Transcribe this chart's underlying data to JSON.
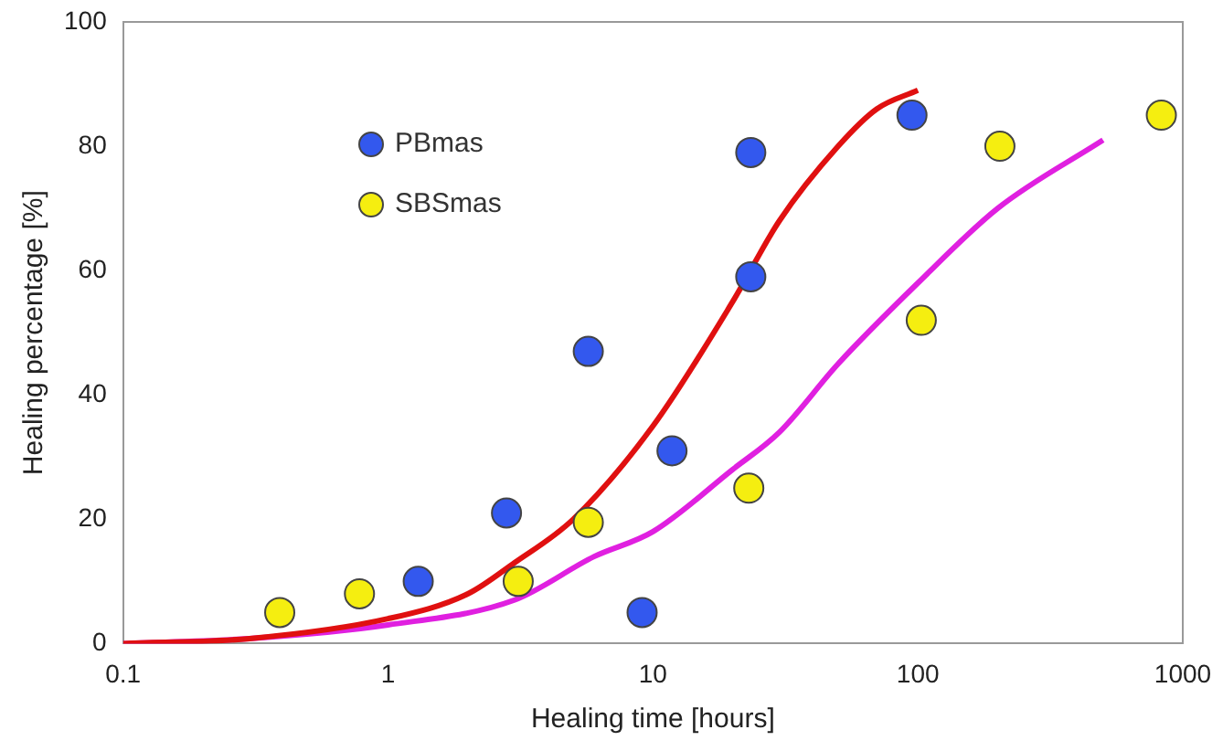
{
  "chart_data": {
    "type": "scatter",
    "xlabel": "Healing time [hours]",
    "ylabel": "Healing percentage [%]",
    "log": "x",
    "xlim": [
      0.1,
      1000
    ],
    "xticks": [
      0.1,
      1,
      10,
      100,
      1000
    ],
    "ylim": [
      0,
      100
    ],
    "yticks": [
      0,
      20,
      40,
      60,
      80,
      100
    ],
    "grid": false,
    "legend": "top left",
    "series": [
      {
        "name": "PBmas",
        "type": "scatter",
        "marker": "circle",
        "color": "#3358ee",
        "x": [
          1.3,
          2.8,
          5.7,
          9.1,
          11.8,
          23.4,
          23.4,
          95
        ],
        "values": [
          10,
          21,
          47,
          5,
          31,
          79,
          59,
          85
        ]
      },
      {
        "name": "SBSmas",
        "type": "scatter",
        "marker": "circle",
        "color": "#f5ee10",
        "x": [
          0.39,
          0.78,
          3.1,
          5.7,
          23,
          103,
          204,
          830
        ],
        "values": [
          5,
          8,
          10,
          19.5,
          25,
          52,
          80,
          85
        ]
      },
      {
        "type": "line",
        "marker": "none",
        "color": "#e01010",
        "x": [
          0.1,
          0.3,
          1,
          2,
          3,
          5,
          10,
          20,
          30,
          50,
          70,
          100
        ],
        "values": [
          0,
          0.8,
          4,
          8,
          13,
          20,
          35,
          55,
          68,
          80,
          86,
          89
        ]
      },
      {
        "type": "line",
        "marker": "none",
        "color": "#e020e0",
        "x": [
          0.1,
          0.3,
          1,
          3,
          6,
          10,
          20,
          30,
          50,
          100,
          200,
          500
        ],
        "values": [
          0,
          0.8,
          3,
          7,
          14,
          18,
          28,
          34,
          45,
          58,
          70,
          81
        ]
      }
    ]
  }
}
